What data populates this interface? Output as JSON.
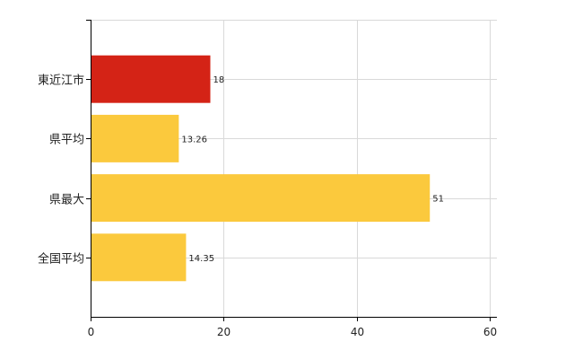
{
  "chart_data": {
    "type": "bar",
    "orientation": "horizontal",
    "categories": [
      "東近江市",
      "県平均",
      "県最大",
      "全国平均"
    ],
    "values": [
      18,
      13.26,
      51,
      14.35
    ],
    "value_labels": [
      "18",
      "13.26",
      "51",
      "14.35"
    ],
    "bar_colors": [
      "#d42316",
      "#fbc93d",
      "#fbc93d",
      "#fbc93d"
    ],
    "xlim": [
      0,
      60
    ],
    "xticks": [
      0,
      20,
      40,
      60
    ],
    "grid": true,
    "title": "",
    "xlabel": "",
    "ylabel": ""
  }
}
